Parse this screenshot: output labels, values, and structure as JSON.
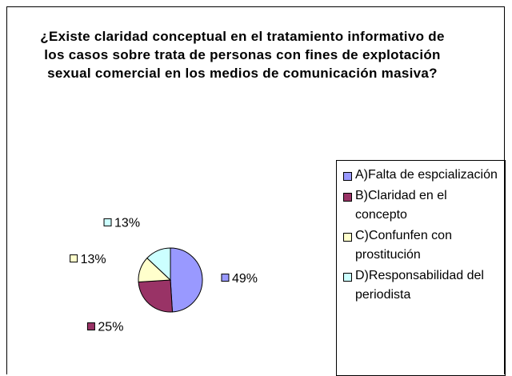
{
  "chart_data": {
    "type": "pie",
    "title": "¿Existe claridad conceptual  en el tratamiento informativo de los casos sobre trata de personas  con fines de explotación sexual comercial en los medios de comunicación masiva?",
    "categories": [
      "A)Falta de espcialización",
      "B)Claridad en el concepto",
      "C)Confunfen con prostitución",
      "D)Responsabilidad del periodista"
    ],
    "values": [
      49,
      25,
      13,
      13
    ],
    "value_labels": [
      "49%",
      "25%",
      "13%",
      "13%"
    ],
    "colors": [
      "#9999ff",
      "#993366",
      "#ffffcc",
      "#ccffff"
    ],
    "legend": "right"
  }
}
